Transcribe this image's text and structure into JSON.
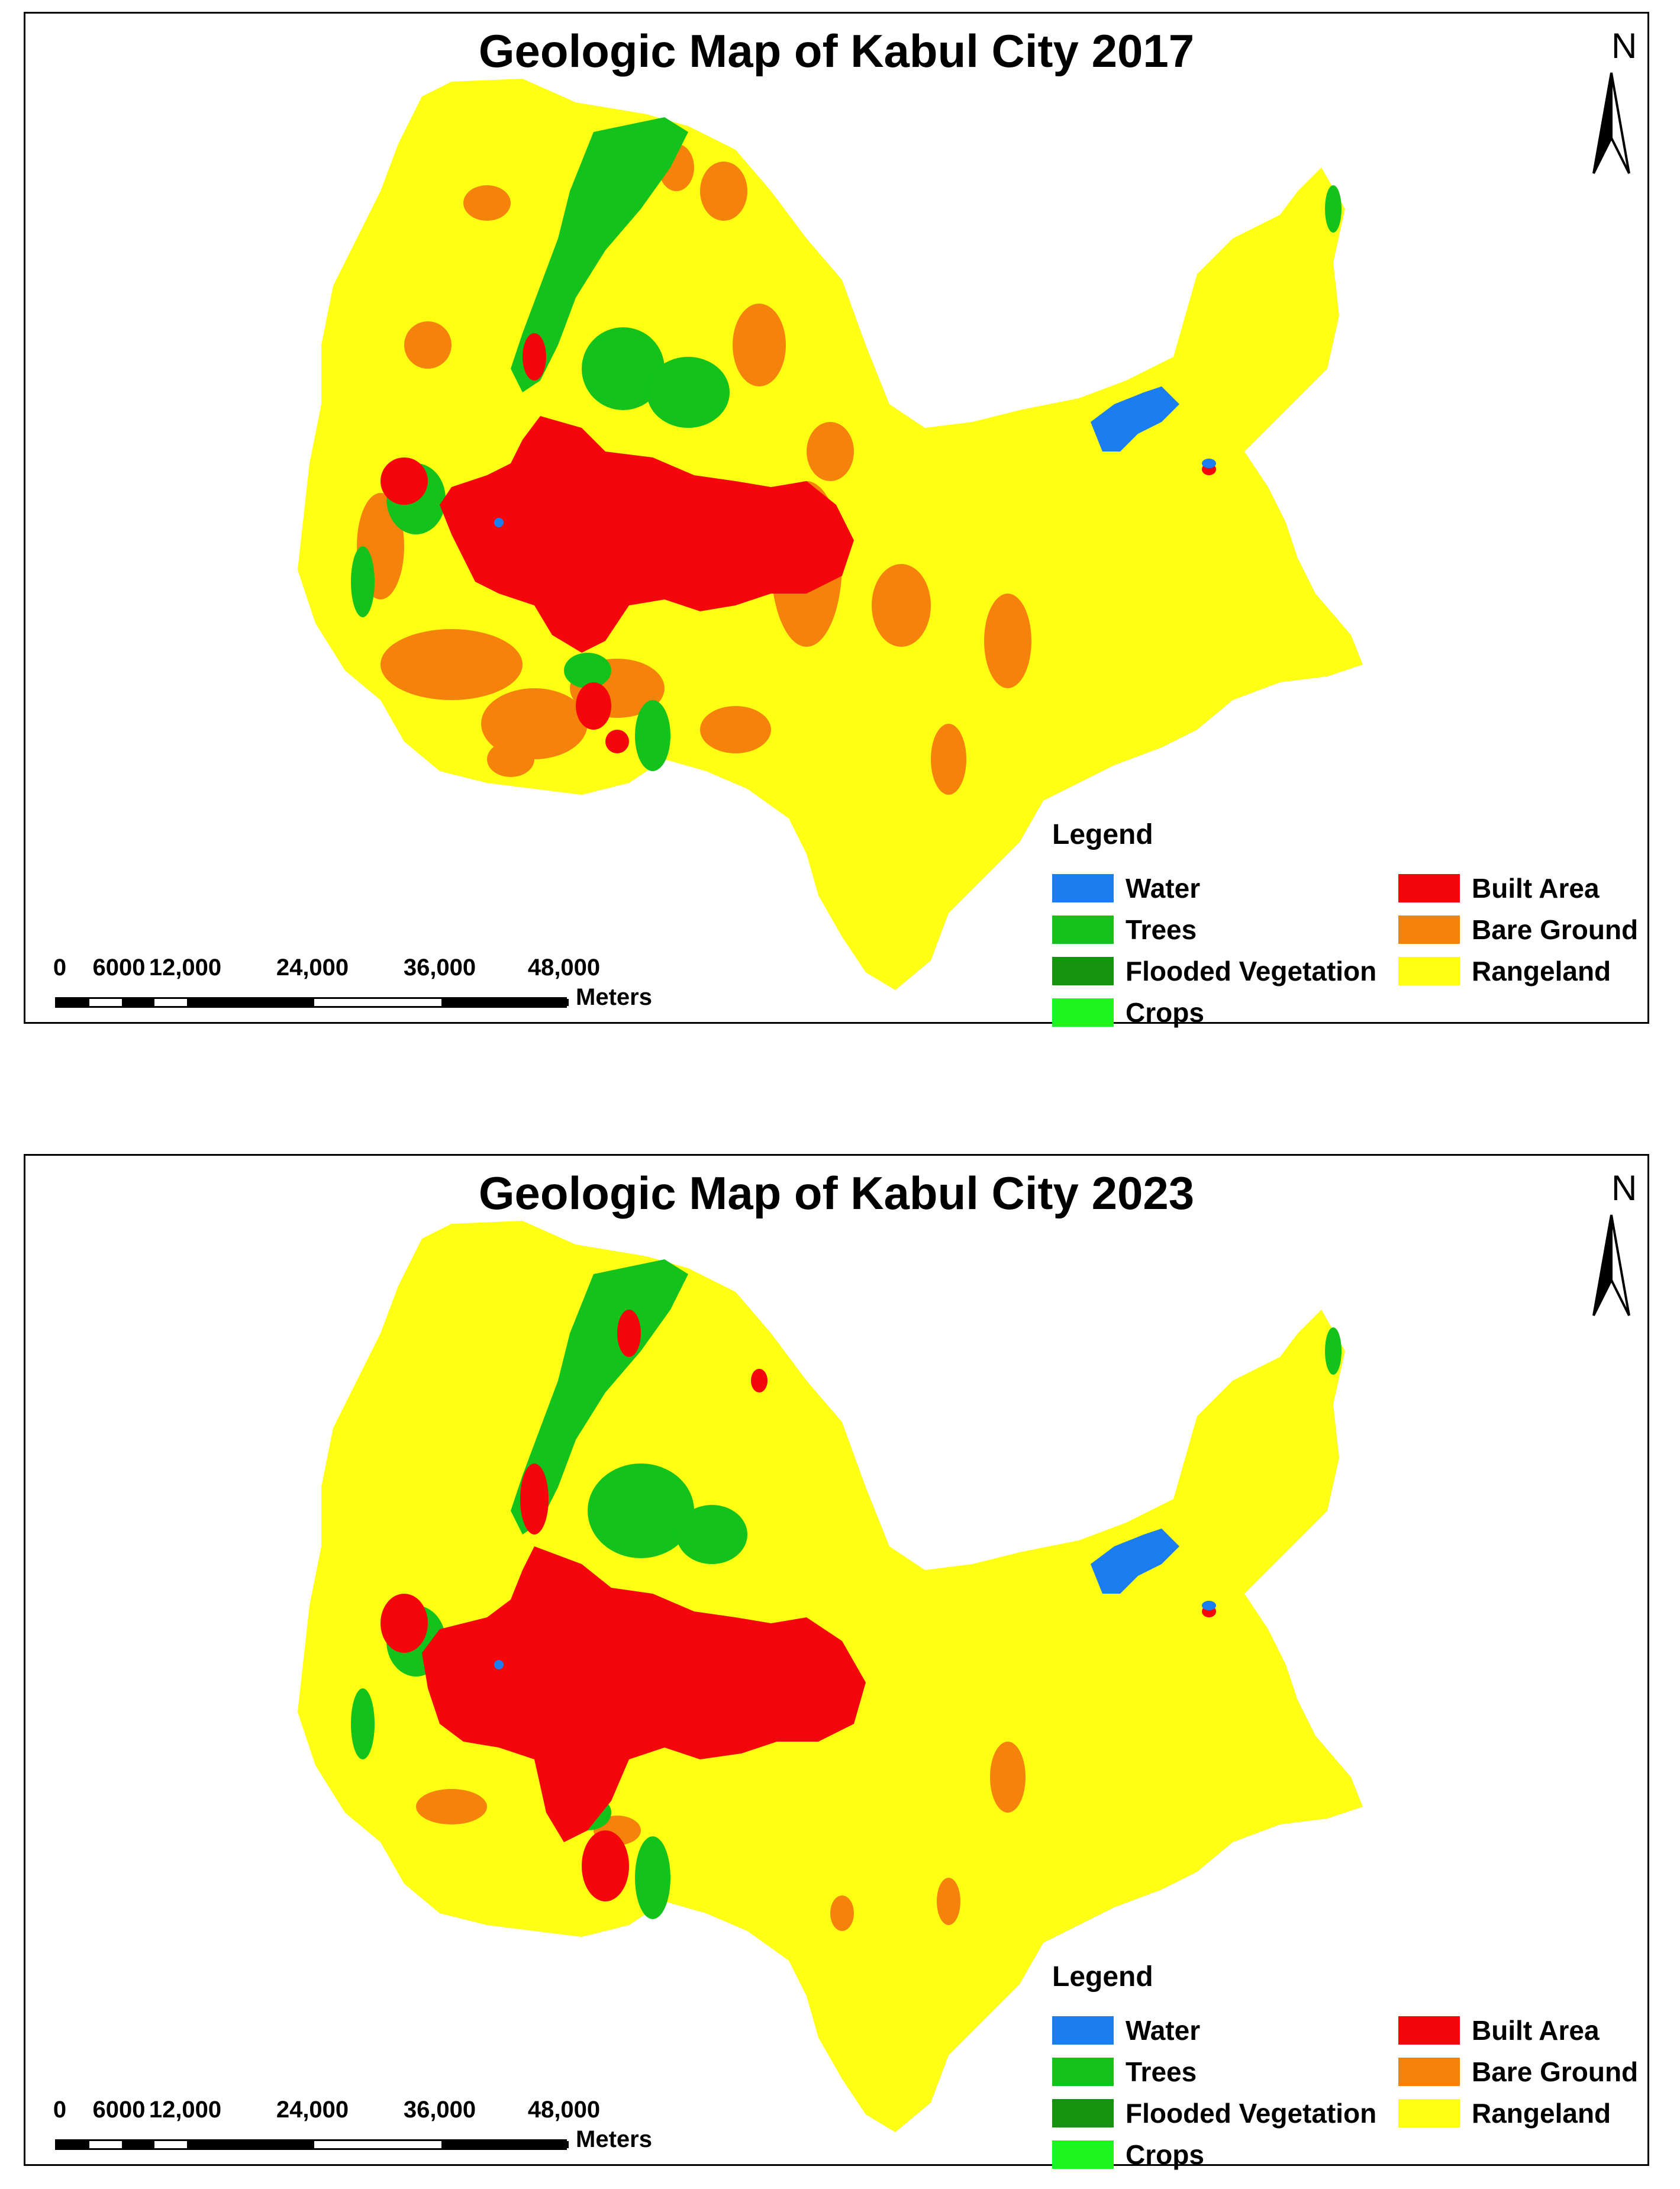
{
  "colors": {
    "water": "#1b7ef0",
    "trees": "#13c31b",
    "flooded_vegetation": "#14930f",
    "crops": "#1ef51c",
    "built_area": "#f5060b",
    "bare_ground": "#f5830b",
    "rangeland": "#ffff14"
  },
  "maps": [
    {
      "title": "Geologic Map of Kabul City 2017",
      "north_label": "N",
      "legend": {
        "title": "Legend",
        "items": [
          {
            "label": "Water",
            "color": "#1b7ef0"
          },
          {
            "label": "Trees",
            "color": "#13c31b"
          },
          {
            "label": "Flooded Vegetation",
            "color": "#14930f"
          },
          {
            "label": "Crops",
            "color": "#1ef51c"
          },
          {
            "label": "Built Area",
            "color": "#f5060b"
          },
          {
            "label": "Bare Ground",
            "color": "#f5830b"
          },
          {
            "label": "Rangeland",
            "color": "#ffff14"
          }
        ]
      },
      "scale": {
        "ticks": [
          "0",
          "6000",
          "12,000",
          "24,000",
          "36,000",
          "48,000"
        ],
        "units": "Meters"
      }
    },
    {
      "title": "Geologic Map of Kabul City 2023",
      "north_label": "N",
      "legend": {
        "title": "Legend",
        "items": [
          {
            "label": "Water",
            "color": "#1b7ef0"
          },
          {
            "label": "Trees",
            "color": "#13c31b"
          },
          {
            "label": "Flooded Vegetation",
            "color": "#14930f"
          },
          {
            "label": "Crops",
            "color": "#1ef51c"
          },
          {
            "label": "Built Area",
            "color": "#f5060b"
          },
          {
            "label": "Bare Ground",
            "color": "#f5830b"
          },
          {
            "label": "Rangeland",
            "color": "#ffff14"
          }
        ]
      },
      "scale": {
        "ticks": [
          "0",
          "6000",
          "12,000",
          "24,000",
          "36,000",
          "48,000"
        ],
        "units": "Meters"
      }
    }
  ]
}
